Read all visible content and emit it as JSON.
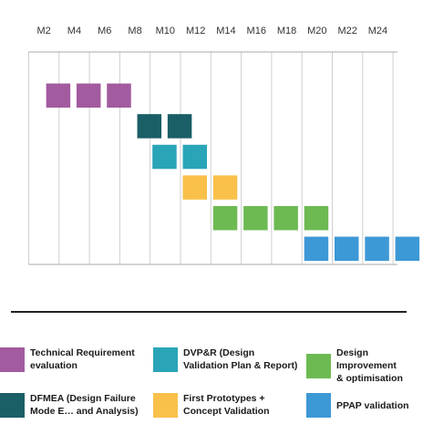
{
  "chart_data": {
    "type": "gantt",
    "title": "",
    "xlabel": "",
    "ylabel": "",
    "x_ticks": [
      "M2",
      "M4",
      "M6",
      "M8",
      "M10",
      "M12",
      "M14",
      "M16",
      "M18",
      "M20",
      "M22",
      "M24"
    ],
    "xlim": [
      "M1",
      "M25"
    ],
    "grid": true,
    "legend_position": "bottom",
    "series": [
      {
        "name": "Technical Requirement\nevaluation",
        "color": "#a25b9e",
        "start": "M1",
        "end": "M7",
        "blocks": [
          "M2",
          "M4",
          "M6"
        ]
      },
      {
        "name": "DFMEA (Design Failure\nMode E… and Analysis)",
        "color": "#1a5e66",
        "start": "M7",
        "end": "M11",
        "blocks": [
          "M8",
          "M10"
        ]
      },
      {
        "name": "DVP&R (Design\nValidation Plan & Report)",
        "color": "#2aa5b8",
        "start": "M9",
        "end": "M13",
        "blocks": [
          "M9",
          "M11"
        ]
      },
      {
        "name": "First Prototypes +\nConcept Validation",
        "color": "#f9c04a",
        "start": "M11",
        "end": "M15",
        "blocks": [
          "M11",
          "M13"
        ]
      },
      {
        "name": "Design Improvement\n& optimisation",
        "color": "#6dba53",
        "start": "M13",
        "end": "M21",
        "blocks": [
          "M13",
          "M15",
          "M17",
          "M19"
        ]
      },
      {
        "name": "PPAP validation",
        "color": "#3d98d6",
        "start": "M19",
        "end": "M25",
        "blocks": [
          "M19",
          "M21",
          "M23",
          "M25"
        ]
      }
    ]
  },
  "legend": {
    "technical": "Technical Requirement\nevaluation",
    "dfmea": "DFMEA (Design Failure\nMode E… and Analysis)",
    "dvpr": "DVP&R (Design\nValidation Plan & Report)",
    "prototypes": "First Prototypes +\nConcept Validation",
    "improvement": "Design Improvement\n& optimisation",
    "ppap": "PPAP validation"
  },
  "colors": {
    "grid": "#cfcfcf",
    "axis": "#aaaaaa",
    "divider": "#222222"
  }
}
